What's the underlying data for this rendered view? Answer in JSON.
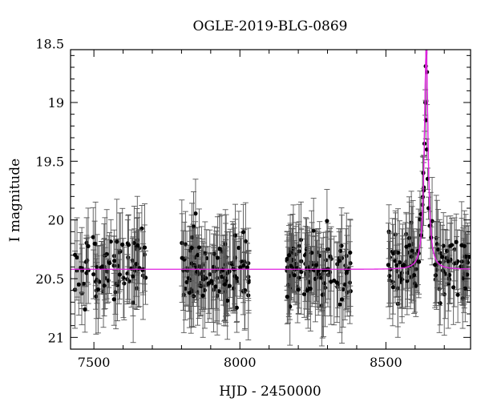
{
  "chart_data": {
    "type": "scatter",
    "title": "OGLE-2019-BLG-0869",
    "xlabel": "HJD - 2450000",
    "ylabel": "I magnitude",
    "xlim": [
      7420,
      8790
    ],
    "ylim": [
      21.1,
      18.55
    ],
    "y_inverted": true,
    "x_ticks": [
      7500,
      8000,
      8500
    ],
    "y_ticks": [
      18.5,
      19,
      19.5,
      20,
      20.5,
      21
    ],
    "y_tick_labels": [
      "18.5",
      "19",
      "19.5",
      "20",
      "20.5",
      "21"
    ],
    "x_tick_labels": [
      "7500",
      "8000",
      "8500"
    ],
    "grid": false,
    "marker_color": "#000000",
    "model_color": "#e020e0",
    "baseline_magnitude": 20.42,
    "model": {
      "t0": 8638,
      "peak_magnitude": 18.55,
      "time_scale_days": 8
    },
    "observing_seasons": [
      {
        "start": 7435,
        "end": 7680,
        "points": 90
      },
      {
        "start": 7800,
        "end": 8030,
        "points": 120
      },
      {
        "start": 8160,
        "end": 8380,
        "points": 115
      },
      {
        "start": 8500,
        "end": 8785,
        "points": 120
      }
    ],
    "highlighted_points": [
      {
        "x": 8628,
        "y": 19.6
      },
      {
        "x": 8632,
        "y": 19.35
      },
      {
        "x": 8635,
        "y": 19.0
      },
      {
        "x": 8637,
        "y": 19.15
      },
      {
        "x": 8640,
        "y": 19.4
      },
      {
        "x": 8643,
        "y": 19.65
      },
      {
        "x": 8646,
        "y": 19.9
      },
      {
        "x": 8650,
        "y": 20.05
      },
      {
        "x": 8620,
        "y": 19.95
      },
      {
        "x": 8655,
        "y": 20.15
      }
    ]
  }
}
